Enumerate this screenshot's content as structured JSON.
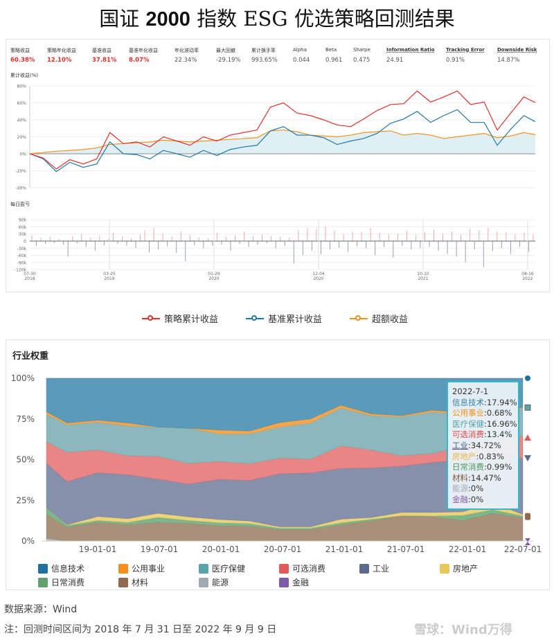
{
  "title_pre": "国证 ",
  "title_bold": "2000",
  "title_post": " 指数 ESG 优选策略回测结果",
  "metrics": [
    {
      "label": "策略收益",
      "value": "60.38%",
      "highlight": true
    },
    {
      "label": "策略年化收益",
      "value": "12.10%",
      "highlight": true
    },
    {
      "label": "基准收益",
      "value": "37.81%",
      "highlight": true
    },
    {
      "label": "基准年化收益",
      "value": "8.07%",
      "highlight": true
    },
    {
      "label": "年化波动率",
      "value": "22.34%"
    },
    {
      "label": "最大回撤",
      "value": "-29.19%"
    },
    {
      "label": "累计换手率",
      "value": "993.65%"
    },
    {
      "label": "Alpha",
      "value": "0.044"
    },
    {
      "label": "Beta",
      "value": "0.961"
    },
    {
      "label": "Sharpe",
      "value": "0.475"
    },
    {
      "label": "Information Ratio",
      "value": "24.91",
      "underline": true
    },
    {
      "label": "Tracking Error",
      "value": "0.91%",
      "underline": true
    },
    {
      "label": "Downside Risk",
      "value": "14.87%",
      "underline": true
    }
  ],
  "legend": [
    {
      "label": "策略累计收益",
      "color": "#e0302a"
    },
    {
      "label": "基准累计收益",
      "color": "#1f77a8"
    },
    {
      "label": "超额收益",
      "color": "#f5901e"
    }
  ],
  "footer": {
    "source": "数据来源：Wind",
    "note": "注：回测时间区间为 2018 年 7 月 31 日至 2022 年 9 月 9 日",
    "watermark": "雪球：Wind万得"
  },
  "chart_data": [
    {
      "type": "line",
      "title": "累计收益(%)",
      "ylim": [
        -40,
        80
      ],
      "yticks": [
        "80%",
        "60%",
        "40%",
        "20%",
        "0%",
        "-20%",
        "-40%"
      ],
      "xticks": [
        {
          "date": "07-30",
          "year": "2018"
        },
        {
          "date": "03-25",
          "year": "2019"
        },
        {
          "date": "01-29",
          "year": "2020"
        },
        {
          "date": "12-04",
          "year": "2020"
        },
        {
          "date": "10-10",
          "year": "2021"
        },
        {
          "date": "08-16",
          "year": "2022"
        }
      ],
      "grid": true,
      "x": [
        "2018-07-30",
        "2018-09-08",
        "2018-10-17",
        "2018-11-26",
        "2019-01-05",
        "2019-02-14",
        "2019-03-25",
        "2019-05-04",
        "2019-06-13",
        "2019-07-22",
        "2019-08-31",
        "2019-10-10",
        "2019-11-18",
        "2019-12-28",
        "2020-02-06",
        "2020-03-16",
        "2020-04-25",
        "2020-06-04",
        "2020-07-14",
        "2020-08-22",
        "2020-10-01",
        "2020-11-10",
        "2020-12-19",
        "2021-01-28",
        "2021-03-09",
        "2021-04-17",
        "2021-05-27",
        "2021-07-06",
        "2021-08-14",
        "2021-09-23",
        "2021-11-02",
        "2021-12-11",
        "2022-01-20",
        "2022-03-01",
        "2022-04-10",
        "2022-05-19",
        "2022-06-28",
        "2022-08-06",
        "2022-09-09"
      ],
      "series": [
        {
          "name": "策略累计收益",
          "color": "#e0302a",
          "values": [
            0,
            -5,
            -18,
            -7,
            -12,
            -6,
            25,
            12,
            14,
            8,
            20,
            15,
            10,
            20,
            15,
            22,
            25,
            28,
            55,
            60,
            48,
            45,
            40,
            34,
            32,
            41,
            51,
            58,
            59,
            74,
            61,
            67,
            74,
            58,
            61,
            28,
            48,
            67,
            60.38
          ]
        },
        {
          "name": "基准累计收益",
          "color": "#1f77a8",
          "values": [
            0,
            -6,
            -21,
            -10,
            -16,
            -12,
            14,
            0,
            -1,
            -6,
            4,
            0,
            -4,
            4,
            -2,
            5,
            8,
            10,
            27,
            32,
            22,
            22,
            19,
            11,
            15,
            18,
            24,
            36,
            41,
            50,
            37,
            45,
            52,
            37,
            37,
            10,
            29,
            45,
            37.81
          ]
        },
        {
          "name": "超额收益",
          "color": "#f5901e",
          "fill": "#dff0f5",
          "values": [
            0,
            1.5,
            3,
            4,
            5,
            7,
            11,
            12,
            13,
            14,
            16,
            15,
            14,
            15,
            16,
            17,
            18,
            19,
            27,
            28,
            26,
            22,
            21,
            20,
            22,
            25,
            26,
            27,
            22,
            24,
            22,
            18,
            20,
            22,
            24,
            19,
            21,
            25,
            22.57
          ]
        }
      ]
    },
    {
      "type": "bar",
      "title": "每日盈亏",
      "ylim": [
        -120,
        90
      ],
      "unit": "k",
      "yticks": [
        "90k",
        "60k",
        "30k",
        "0",
        "-30k",
        "-60k",
        "-90k",
        "-120k"
      ],
      "colors": {
        "positive": "#f0a0a0",
        "negative": "#8a94bb"
      },
      "values": [
        25,
        -20,
        15,
        -12,
        18,
        -8,
        10,
        -15,
        -65,
        20,
        -10,
        30,
        -25,
        15,
        -40,
        22,
        -18,
        10,
        35,
        -12,
        18,
        -20,
        12,
        -30,
        28,
        45,
        -48,
        55,
        -35,
        30,
        -22,
        20,
        -50,
        40,
        -85,
        25,
        -18,
        15,
        -30,
        12,
        -20,
        35,
        -15,
        18,
        -40,
        25,
        -12,
        40,
        -25,
        20,
        -15,
        28,
        -10,
        22,
        -30,
        18,
        -20,
        15,
        -95,
        45,
        -60,
        55,
        -40,
        50,
        -55,
        62,
        -35,
        45,
        -28,
        30,
        -45,
        40,
        -22,
        38,
        -30,
        55,
        -60,
        35,
        -25,
        28,
        -70,
        30,
        -20,
        42,
        -35,
        25,
        -30,
        38,
        -25,
        48,
        -40,
        30,
        -55,
        40,
        -65,
        28,
        -90,
        52,
        -35,
        45,
        -110,
        55,
        -42,
        40,
        -30,
        38,
        -55,
        30,
        -25,
        35,
        -45,
        28
      ]
    },
    {
      "type": "area",
      "stacked": true,
      "title": "行业权重",
      "ylim": [
        0,
        100
      ],
      "yticks": [
        "100%",
        "75%",
        "50%",
        "25%",
        "0%"
      ],
      "xticks": [
        "19-01-01",
        "19-07-01",
        "20-01-01",
        "20-07-01",
        "21-01-01",
        "21-07-01",
        "22-01-01",
        "22-07-01"
      ],
      "x": [
        "2018-07-31",
        "2018-10-01",
        "2019-01-01",
        "2019-04-01",
        "2019-07-01",
        "2019-10-01",
        "2020-01-01",
        "2020-04-01",
        "2020-07-01",
        "2020-10-01",
        "2021-01-01",
        "2021-04-01",
        "2021-07-01",
        "2021-10-01",
        "2022-01-01",
        "2022-04-01",
        "2022-07-01"
      ],
      "series": [
        {
          "name": "能源",
          "color": "#a0aab5",
          "area": "#b9c1ca",
          "values": [
            1.5,
            0,
            0,
            0,
            0,
            0,
            0,
            0,
            0,
            0,
            0,
            0,
            0,
            0,
            0,
            0,
            0
          ]
        },
        {
          "name": "材料",
          "color": "#8f6a4f",
          "area": "#a8907a",
          "values": [
            15,
            8.5,
            11.5,
            10,
            11.5,
            10.8,
            9.4,
            9.2,
            7,
            7,
            10,
            12.3,
            15.4,
            15,
            12.7,
            16.9,
            14.47
          ]
        },
        {
          "name": "日常消费",
          "color": "#5fa26f",
          "area": "#7fb58a",
          "values": [
            4.2,
            1.2,
            1.2,
            1.5,
            3.1,
            1.9,
            1.9,
            1.6,
            1,
            1,
            1.3,
            1.1,
            0.2,
            0.5,
            3.1,
            2.4,
            0.99
          ]
        },
        {
          "name": "房地产",
          "color": "#e8c85a",
          "area": "#eed27a",
          "values": [
            0,
            0.3,
            2.3,
            2.2,
            2.4,
            2.1,
            1.9,
            1.5,
            0.7,
            0.7,
            2.1,
            1,
            1.9,
            2,
            2.1,
            4.2,
            0.83
          ]
        },
        {
          "name": "工业",
          "color": "#5a6a8f",
          "area": "#8590aa",
          "values": [
            27.3,
            26.5,
            27,
            27,
            21,
            20.2,
            24.7,
            24.9,
            32.7,
            33.1,
            31.2,
            30.5,
            28.5,
            30.7,
            32.1,
            27.5,
            34.72
          ]
        },
        {
          "name": "可选消费",
          "color": "#e05a5a",
          "area": "#e88585",
          "values": [
            13,
            18,
            14,
            11.7,
            14,
            12.7,
            11,
            10.3,
            9.6,
            8.5,
            13.9,
            11.1,
            6.4,
            5.6,
            8,
            11,
            13.4
          ]
        },
        {
          "name": "医疗保健",
          "color": "#5aa3a8",
          "area": "#8ab8bc",
          "values": [
            17,
            16.9,
            17,
            18.3,
            18,
            21.6,
            16.9,
            18.3,
            19,
            22.2,
            23.2,
            21,
            23.9,
            25.4,
            20,
            17,
            16.96
          ]
        },
        {
          "name": "公用事业",
          "color": "#f5901e",
          "area": "#f5a54a",
          "values": [
            1.5,
            1.1,
            1.2,
            1.8,
            0,
            0,
            2.4,
            1.8,
            2.8,
            2.5,
            1.7,
            1.2,
            0.7,
            1.2,
            1,
            1,
            0.68
          ]
        },
        {
          "name": "信息技术",
          "color": "#1f6f9f",
          "area": "#5a9abb",
          "values": [
            20.5,
            27.5,
            25.8,
            27.5,
            30,
            30.7,
            31.8,
            32.4,
            27.2,
            25,
            16.6,
            21.8,
            23,
            19.6,
            21,
            20,
            17.94
          ]
        },
        {
          "name": "金融",
          "color": "#7e5aa8",
          "area": "#9a7fc0",
          "values": [
            0,
            0,
            0,
            0,
            0,
            0,
            0,
            0,
            0,
            0,
            0,
            0,
            0,
            0,
            0,
            0,
            0
          ]
        }
      ],
      "tooltip": {
        "date": "2022-7-1",
        "items": [
          {
            "name": "信息技术",
            "value": "17.94%",
            "color": "#3a7fa8"
          },
          {
            "name": "公用事业",
            "value": "0.68%",
            "color": "#f5901e"
          },
          {
            "name": "医疗保健",
            "value": "16.96%",
            "color": "#5aa3a8"
          },
          {
            "name": "可选消费",
            "value": "13.4%",
            "color": "#e04a4a"
          },
          {
            "name": "工业",
            "value": "34.72%",
            "color": "#4a5a80",
            "underline": true
          },
          {
            "name": "房地产",
            "value": "0.83%",
            "color": "#e8b84a"
          },
          {
            "name": "日常消费",
            "value": "0.99%",
            "color": "#4f9a5f"
          },
          {
            "name": "材料",
            "value": "14.47%",
            "color": "#7a5a45"
          },
          {
            "name": "能源",
            "value": "0%",
            "color": "#a0aab5"
          },
          {
            "name": "金融",
            "value": "0%",
            "color": "#7e5aa8"
          }
        ]
      },
      "legend": [
        "信息技术",
        "公用事业",
        "医疗保健",
        "可选消费",
        "工业",
        "房地产",
        "日常消费",
        "材料",
        "能源",
        "金融"
      ]
    }
  ]
}
